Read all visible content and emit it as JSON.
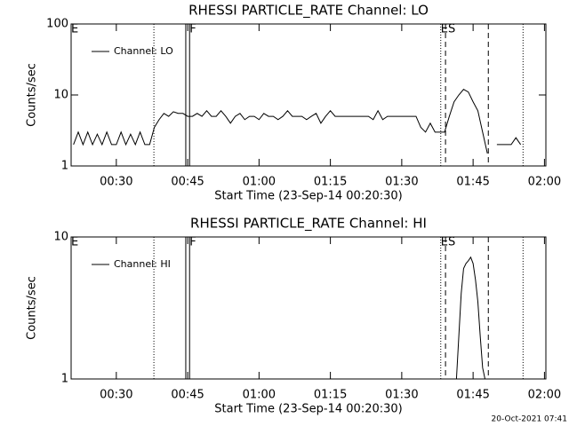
{
  "chart_data": [
    {
      "type": "line",
      "title": "RHESSI PARTICLE_RATE Channel: LO",
      "xlabel": "Start Time (23-Sep-14 00:20:30)",
      "ylabel": "Counts/sec",
      "xlim": [
        20.5,
        120.3
      ],
      "ylim": [
        1,
        100
      ],
      "log_y": true,
      "legend": "upper left",
      "xticks": [
        {
          "value": 30,
          "label": "00:30"
        },
        {
          "value": 45,
          "label": "00:45"
        },
        {
          "value": 60,
          "label": "01:00"
        },
        {
          "value": 75,
          "label": "01:15"
        },
        {
          "value": 90,
          "label": "01:30"
        },
        {
          "value": 105,
          "label": "01:45"
        },
        {
          "value": 120,
          "label": "02:00"
        }
      ],
      "yticks": [
        1,
        10,
        100
      ],
      "vlines": [
        {
          "x": 37.9,
          "style": "dotted"
        },
        {
          "x": 44.6,
          "style": "solid"
        },
        {
          "x": 45.4,
          "style": "solid"
        },
        {
          "x": 98.2,
          "style": "dotted"
        },
        {
          "x": 99.2,
          "style": "dashed"
        },
        {
          "x": 108.2,
          "style": "dashed"
        },
        {
          "x": 115.5,
          "style": "dotted"
        }
      ],
      "markers": [
        {
          "x": 20.5,
          "label": "E"
        },
        {
          "x": 45.4,
          "label": "F"
        },
        {
          "x": 98.2,
          "label": "ES"
        }
      ],
      "x": [
        21,
        22,
        23,
        24,
        25,
        26,
        27,
        28,
        29,
        30,
        31,
        32,
        33,
        34,
        35,
        36,
        37,
        38,
        39,
        40,
        41,
        42,
        43,
        44,
        45,
        46,
        47,
        48,
        49,
        50,
        51,
        52,
        53,
        54,
        55,
        56,
        57,
        58,
        59,
        60,
        61,
        62,
        63,
        64,
        65,
        66,
        67,
        68,
        69,
        70,
        71,
        72,
        73,
        74,
        75,
        76,
        77,
        78,
        79,
        80,
        81,
        82,
        83,
        84,
        85,
        86,
        87,
        88,
        89,
        90,
        91,
        92,
        93,
        94,
        95,
        96,
        97,
        98,
        99,
        100,
        101,
        102,
        103,
        104,
        105,
        106,
        107,
        108,
        109,
        110,
        111,
        112,
        113,
        114,
        115
      ],
      "series": [
        {
          "name": "Channel: LO",
          "color": "#000000",
          "values": [
            2,
            3,
            2,
            3,
            2,
            2.8,
            2,
            3,
            2,
            2,
            3,
            2,
            2.8,
            2,
            3,
            2,
            2,
            3.5,
            4.5,
            5.5,
            5,
            5.8,
            5.5,
            5.5,
            5,
            5,
            5.5,
            5,
            6,
            5,
            5,
            6,
            5,
            4,
            5,
            5.5,
            4.5,
            5,
            5,
            4.5,
            5.5,
            5,
            5,
            4.5,
            5,
            6,
            5,
            5,
            5,
            4.5,
            5,
            5.5,
            4,
            5,
            6,
            5,
            5,
            5,
            5,
            5,
            5,
            5,
            5,
            4.5,
            6,
            4.5,
            5,
            5,
            5,
            5,
            5,
            5,
            5,
            3.5,
            3,
            4,
            3,
            3,
            3,
            5,
            8,
            10,
            12,
            11,
            8,
            6,
            3,
            1.5,
            null,
            2,
            2,
            2,
            2,
            2.5,
            2
          ]
        }
      ]
    },
    {
      "type": "line",
      "title": "RHESSI PARTICLE_RATE Channel: HI",
      "xlabel": "Start Time (23-Sep-14 00:20:30)",
      "ylabel": "Counts/sec",
      "xlim": [
        20.5,
        120.3
      ],
      "ylim": [
        1,
        10
      ],
      "log_y": true,
      "legend": "upper left",
      "xticks": [
        {
          "value": 30,
          "label": "00:30"
        },
        {
          "value": 45,
          "label": "00:45"
        },
        {
          "value": 60,
          "label": "01:00"
        },
        {
          "value": 75,
          "label": "01:15"
        },
        {
          "value": 90,
          "label": "01:30"
        },
        {
          "value": 105,
          "label": "01:45"
        },
        {
          "value": 120,
          "label": "02:00"
        }
      ],
      "yticks": [
        1,
        10
      ],
      "vlines": [
        {
          "x": 37.9,
          "style": "dotted"
        },
        {
          "x": 44.6,
          "style": "solid"
        },
        {
          "x": 45.4,
          "style": "solid"
        },
        {
          "x": 98.2,
          "style": "dotted"
        },
        {
          "x": 99.2,
          "style": "dashed"
        },
        {
          "x": 108.2,
          "style": "dashed"
        },
        {
          "x": 115.5,
          "style": "dotted"
        }
      ],
      "markers": [
        {
          "x": 20.5,
          "label": "E"
        },
        {
          "x": 45.4,
          "label": "F"
        },
        {
          "x": 98.2,
          "label": "ES"
        }
      ],
      "x": [
        101.5,
        102,
        102.5,
        103,
        103.5,
        104,
        104.5,
        105,
        105.5,
        106,
        106.5,
        107,
        107.5
      ],
      "series": [
        {
          "name": "Channel: HI",
          "color": "#000000",
          "values": [
            1,
            2,
            4,
            6,
            6.5,
            6.8,
            7.2,
            6.5,
            5,
            3.5,
            2,
            1.2,
            1
          ]
        }
      ]
    }
  ],
  "footer": "20-Oct-2021 07:41"
}
